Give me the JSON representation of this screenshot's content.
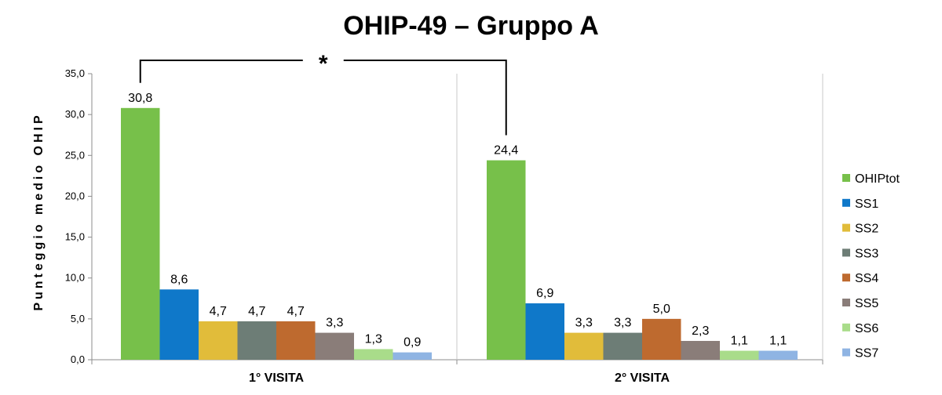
{
  "chart_data": {
    "type": "bar",
    "title": "OHIP-49 – Gruppo A",
    "ylabel": "Punteggio medio OHIP",
    "xlabel": "",
    "ylim": [
      0,
      35
    ],
    "yticks": [
      "0,0",
      "5,0",
      "10,0",
      "15,0",
      "20,0",
      "25,0",
      "30,0",
      "35,0"
    ],
    "ytick_values": [
      0,
      5,
      10,
      15,
      20,
      25,
      30,
      35
    ],
    "categories": [
      "1° VISITA",
      "2° VISITA"
    ],
    "series": [
      {
        "name": "OHIPtot",
        "color": "#77c04a",
        "values": [
          30.8,
          24.4
        ],
        "labels": [
          "30,8",
          "24,4"
        ]
      },
      {
        "name": "SS1",
        "color": "#0f78c9",
        "values": [
          8.6,
          6.9
        ],
        "labels": [
          "8,6",
          "6,9"
        ]
      },
      {
        "name": "SS2",
        "color": "#e1bc3a",
        "values": [
          4.7,
          3.3
        ],
        "labels": [
          "4,7",
          "3,3"
        ]
      },
      {
        "name": "SS3",
        "color": "#6d7d76",
        "values": [
          4.7,
          3.3
        ],
        "labels": [
          "4,7",
          "3,3"
        ]
      },
      {
        "name": "SS4",
        "color": "#be6a2f",
        "values": [
          4.7,
          5.0
        ],
        "labels": [
          "4,7",
          "5,0"
        ]
      },
      {
        "name": "SS5",
        "color": "#8a7d79",
        "values": [
          3.3,
          2.3
        ],
        "labels": [
          "3,3",
          "2,3"
        ]
      },
      {
        "name": "SS6",
        "color": "#a9dc8a",
        "values": [
          1.3,
          1.1
        ],
        "labels": [
          "1,3",
          "1,1"
        ]
      },
      {
        "name": "SS7",
        "color": "#8fb4e3",
        "values": [
          0.9,
          1.1
        ],
        "labels": [
          "0,9",
          "1,1"
        ]
      }
    ],
    "annotation": {
      "text": "*",
      "from_category": 0,
      "to_category": 1,
      "series": 0
    },
    "grid": false,
    "legend_position": "right"
  }
}
